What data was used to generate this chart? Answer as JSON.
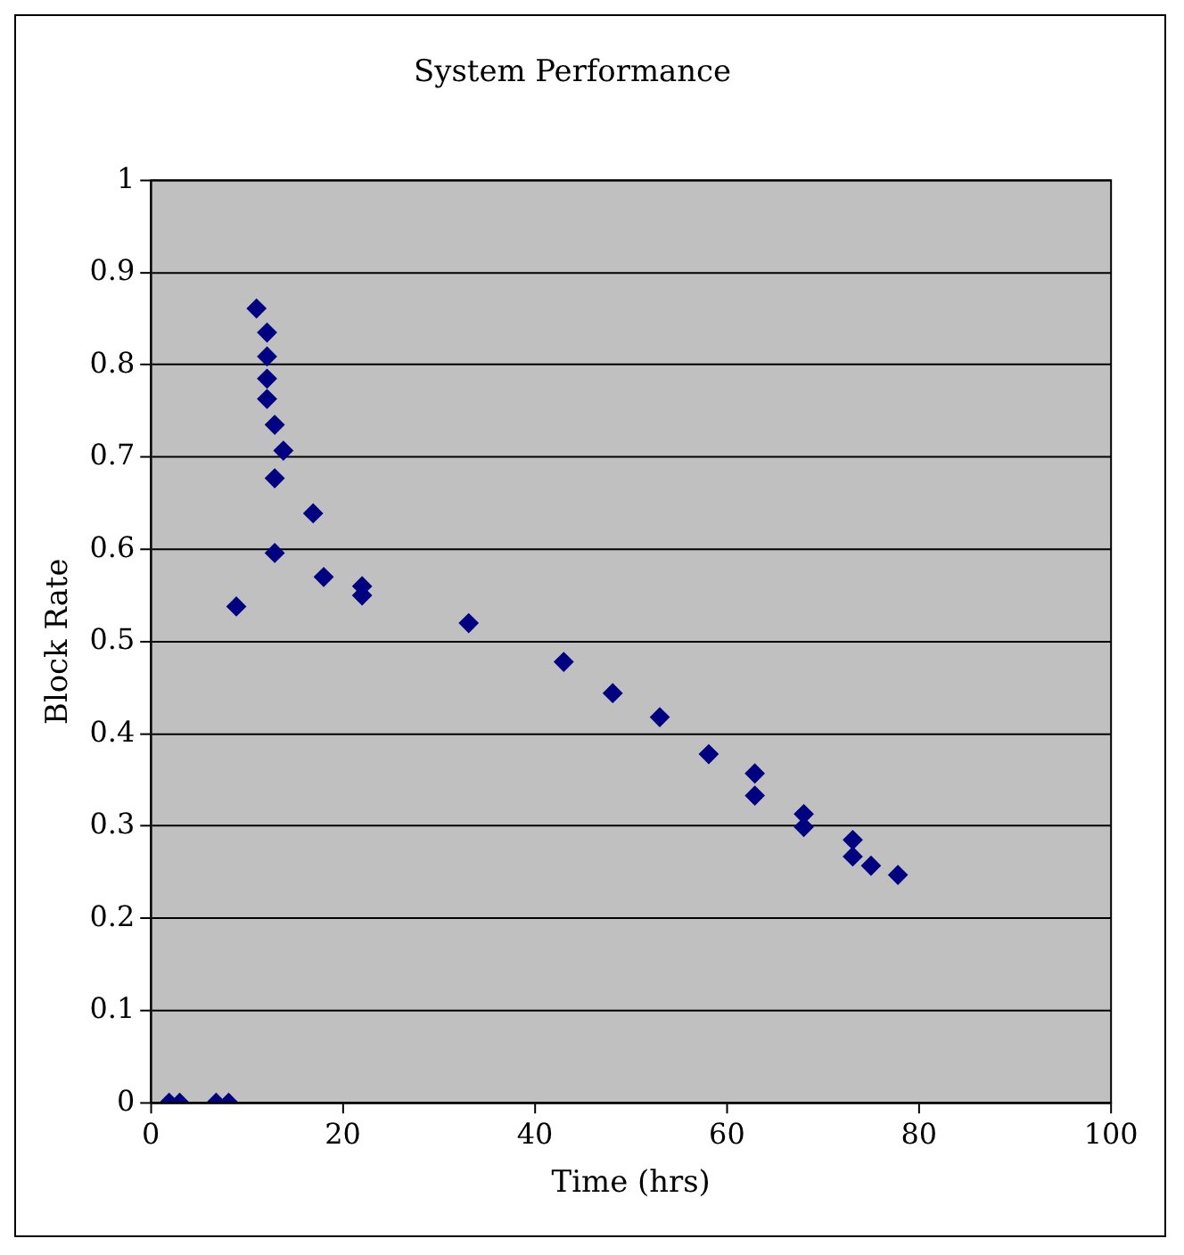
{
  "chart_data": {
    "type": "scatter",
    "title": "System Performance",
    "xlabel": "Time (hrs)",
    "ylabel": "Block Rate",
    "x": [
      1.9,
      3,
      6.8,
      8.1,
      8.9,
      11,
      12.1,
      12.1,
      12.1,
      12.1,
      12.9,
      13.8,
      12.9,
      16.9,
      12.9,
      18,
      22,
      22,
      33.1,
      43,
      48.1,
      53,
      58.1,
      62.9,
      62.9,
      68,
      68,
      73.1,
      73.1,
      75,
      77.8
    ],
    "values": [
      0,
      0,
      0,
      0,
      0.538,
      0.861,
      0.835,
      0.809,
      0.785,
      0.763,
      0.735,
      0.707,
      0.677,
      0.639,
      0.596,
      0.57,
      0.56,
      0.55,
      0.52,
      0.478,
      0.444,
      0.418,
      0.378,
      0.357,
      0.333,
      0.313,
      0.299,
      0.285,
      0.267,
      0.257,
      0.247
    ],
    "color": "#000080",
    "marker": "diamond",
    "grid": "y",
    "xlim": [
      0,
      100
    ],
    "xticks": [
      0,
      20,
      40,
      60,
      80,
      100
    ],
    "ylim": [
      0,
      1
    ],
    "yticks": [
      0,
      0.1,
      0.2,
      0.3,
      0.4,
      0.5,
      0.6,
      0.7,
      0.8,
      0.9,
      1
    ]
  }
}
